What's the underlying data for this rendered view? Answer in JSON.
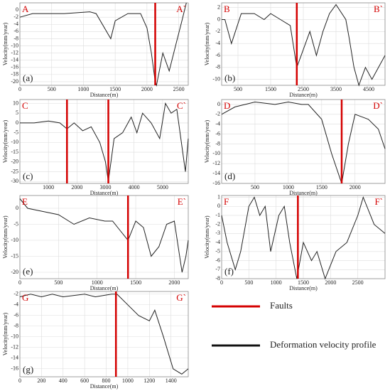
{
  "chart_data": [
    {
      "type": "line",
      "panel": "(a)",
      "start": "A",
      "end": "A`",
      "xlabel": "Distance(m)",
      "ylabel": "Velocity(mm/year)",
      "color": "#222222",
      "fault_color": "#d40000",
      "x": [
        0,
        200,
        700,
        1100,
        1200,
        1430,
        1500,
        1700,
        1900,
        2000,
        2070,
        2130,
        2150,
        2250,
        2350,
        2450,
        2550,
        2620
      ],
      "values": [
        -2,
        -1,
        -1,
        -0.5,
        -1,
        -8,
        -3,
        -1,
        -1,
        -5,
        -12,
        -20,
        -21,
        -12,
        -17,
        -10,
        -3,
        2
      ],
      "faults": [
        2130
      ],
      "xlim": [
        0,
        2650
      ],
      "ylim": [
        -21,
        2
      ],
      "xticks": [
        0,
        500,
        1000,
        1500,
        2000,
        2500
      ],
      "yticks": [
        0,
        -2,
        -4,
        -6,
        -8,
        -10,
        -12,
        -14,
        -16,
        -18,
        -20
      ]
    },
    {
      "type": "line",
      "panel": "(b)",
      "start": "B",
      "end": "B`",
      "xlabel": "Distance(m)",
      "ylabel": "Velocity(mm/year)",
      "color": "#222222",
      "fault_color": "#d40000",
      "x": [
        0,
        100,
        300,
        600,
        1000,
        1300,
        1500,
        1800,
        2100,
        2300,
        2500,
        2700,
        2900,
        3100,
        3300,
        3500,
        3800,
        3900,
        4050,
        4200,
        4400,
        4600,
        4800,
        5000
      ],
      "values": [
        0,
        0,
        -4,
        1,
        1,
        0,
        1,
        0,
        -1,
        -8,
        -5,
        -2,
        -6,
        -2,
        1,
        2.5,
        0,
        -3,
        -8,
        -11,
        -8,
        -10,
        -8,
        -6
      ],
      "faults": [
        2300
      ],
      "xlim": [
        0,
        5000
      ],
      "ylim": [
        -11,
        2.8
      ],
      "xticks": [
        500,
        1500,
        2500,
        3500,
        4500
      ],
      "yticks": [
        2,
        0,
        -2,
        -4,
        -6,
        -8,
        -10
      ]
    },
    {
      "type": "line",
      "panel": "(c)",
      "start": "C",
      "end": "C`",
      "xlabel": "Distance(m)",
      "ylabel": "Velocity(mm/year)",
      "color": "#222222",
      "fault_color": "#d40000",
      "x": [
        0,
        500,
        1000,
        1400,
        1650,
        1900,
        2200,
        2500,
        2800,
        3000,
        3100,
        3300,
        3600,
        3900,
        4100,
        4300,
        4600,
        4900,
        5100,
        5300,
        5500,
        5800,
        5900
      ],
      "values": [
        0,
        0,
        1,
        0,
        -3,
        0,
        -4,
        -2,
        -10,
        -20,
        -30,
        -8,
        -5,
        3,
        -5,
        5,
        0,
        -8,
        10,
        5,
        7,
        -25,
        -8
      ],
      "faults": [
        1650,
        3100
      ],
      "xlim": [
        0,
        5900
      ],
      "ylim": [
        -31,
        12
      ],
      "xticks": [
        1000,
        2000,
        3000,
        4000,
        5000
      ],
      "yticks": [
        10,
        5,
        0,
        -5,
        -10,
        -15,
        -20,
        -25,
        -30
      ]
    },
    {
      "type": "line",
      "panel": "(d)",
      "start": "D",
      "end": "D`",
      "xlabel": "Distance(m)",
      "ylabel": "Velocity(mm/year)",
      "color": "#222222",
      "fault_color": "#d40000",
      "x": [
        0,
        200,
        500,
        800,
        1000,
        1200,
        1300,
        1500,
        1650,
        1800,
        1900,
        2000,
        2200,
        2350,
        2450
      ],
      "values": [
        -2,
        -0.5,
        0.5,
        0,
        0.5,
        0,
        0,
        -3,
        -10,
        -16,
        -8,
        -2,
        -3,
        -5,
        -9
      ],
      "faults": [
        1800
      ],
      "xlim": [
        0,
        2450
      ],
      "ylim": [
        -16,
        1
      ],
      "xticks": [
        500,
        1000,
        1500,
        2000
      ],
      "yticks": [
        0,
        -2,
        -4,
        -6,
        -8,
        -10,
        -12,
        -14,
        -16
      ]
    },
    {
      "type": "line",
      "panel": "(e)",
      "start": "E",
      "end": "E`",
      "xlabel": "Distance(m)",
      "ylabel": "Velocity(mm/year)",
      "color": "#222222",
      "fault_color": "#d40000",
      "x": [
        0,
        100,
        300,
        500,
        700,
        900,
        1100,
        1200,
        1300,
        1400,
        1500,
        1600,
        1700,
        1800,
        1900,
        2000,
        2100,
        2150,
        2180
      ],
      "values": [
        3,
        0,
        -1,
        -2,
        -5,
        -3,
        -4,
        -4,
        -7,
        -10,
        -4,
        -6,
        -15,
        -12,
        -5,
        -4,
        -20,
        -15,
        -10
      ],
      "faults": [
        1400
      ],
      "xlim": [
        0,
        2180
      ],
      "ylim": [
        -22,
        4
      ],
      "xticks": [
        0,
        500,
        1000,
        1500,
        2000
      ],
      "yticks": [
        0,
        -5,
        -10,
        -15,
        -20
      ]
    },
    {
      "type": "line",
      "panel": "(f)",
      "start": "F",
      "end": "F`",
      "xlabel": "Distance(m)",
      "ylabel": "Velocity(mm/year)",
      "color": "#222222",
      "fault_color": "#d40000",
      "x": [
        0,
        100,
        250,
        350,
        500,
        600,
        700,
        800,
        900,
        1050,
        1150,
        1250,
        1380,
        1500,
        1650,
        1750,
        1900,
        2100,
        2300,
        2500,
        2600,
        2800,
        3000
      ],
      "values": [
        -1,
        -4,
        -7,
        -5,
        0,
        1,
        -1,
        0,
        -5,
        -1,
        0,
        -4,
        -8,
        -4,
        -6,
        -5,
        -8,
        -5,
        -4,
        -1,
        1,
        -2,
        -3
      ],
      "faults": [
        1400
      ],
      "xlim": [
        0,
        3000
      ],
      "ylim": [
        -8,
        1.2
      ],
      "xticks": [
        0,
        500,
        1000,
        1500,
        2000,
        2500
      ],
      "yticks": [
        1,
        0,
        -1,
        -2,
        -3,
        -4,
        -5,
        -6,
        -7,
        -8
      ]
    },
    {
      "type": "line",
      "panel": "(g)",
      "start": "G",
      "end": "G`",
      "xlabel": "Distance(m)",
      "ylabel": "Velocity(mm/year)",
      "color": "#222222",
      "fault_color": "#d40000",
      "x": [
        0,
        100,
        200,
        300,
        400,
        600,
        700,
        850,
        900,
        1000,
        1100,
        1200,
        1250,
        1330,
        1420,
        1500,
        1560
      ],
      "values": [
        -2.5,
        -2,
        -2.5,
        -2,
        -2.5,
        -2,
        -2.5,
        -2,
        -2,
        -4,
        -6,
        -7,
        -5,
        -10,
        -16,
        -17,
        -16
      ],
      "faults": [
        890
      ],
      "xlim": [
        0,
        1560
      ],
      "ylim": [
        -17.5,
        -1.5
      ],
      "xticks": [
        0,
        200,
        400,
        600,
        800,
        1000,
        1200,
        1400
      ],
      "yticks": [
        -2,
        -4,
        -6,
        -8,
        -10,
        -12,
        -14,
        -16
      ]
    }
  ],
  "legend": {
    "faults": "Faults",
    "profile": "Deformation velocity profile",
    "fault_color": "#d40000",
    "profile_color": "#111111"
  }
}
